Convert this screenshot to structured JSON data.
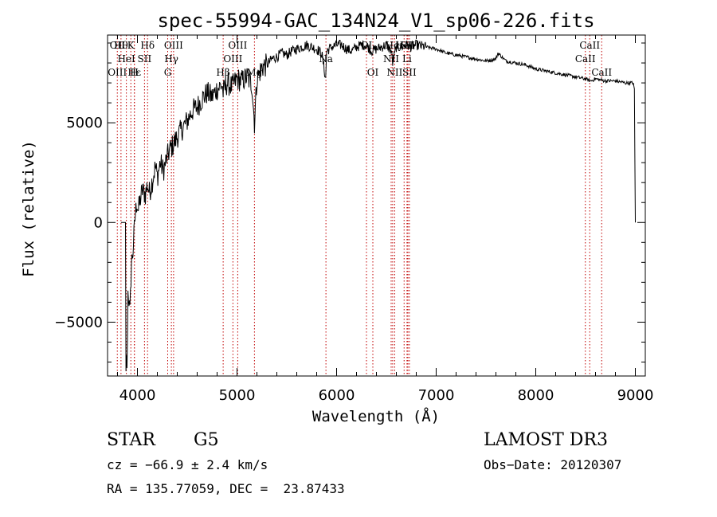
{
  "chart_data": {
    "type": "line",
    "title": "spec-55994-GAC_134N24_V1_sp06-226.fits",
    "xlabel": "Wavelength (Å)",
    "ylabel": "Flux (relative)",
    "xlim": [
      3700,
      9100
    ],
    "ylim": [
      -7700,
      9400
    ],
    "xticks": [
      4000,
      5000,
      6000,
      7000,
      8000,
      9000
    ],
    "xtick_labels": [
      "4000",
      "5000",
      "6000",
      "7000",
      "8000",
      "9000"
    ],
    "yticks": [
      -5000,
      0,
      5000
    ],
    "ytick_labels": [
      "−5000",
      "0",
      "5000"
    ],
    "series": [
      {
        "name": "flux",
        "x": [
          3835,
          3860,
          3880,
          3885,
          3890,
          3895,
          3905,
          3915,
          3925,
          3940,
          3955,
          3965,
          3980,
          3995,
          4010,
          4030,
          4050,
          4080,
          4100,
          4120,
          4150,
          4180,
          4200,
          4230,
          4260,
          4300,
          4330,
          4360,
          4400,
          4450,
          4500,
          4550,
          4600,
          4650,
          4700,
          4750,
          4800,
          4850,
          4861,
          4900,
          4950,
          5000,
          5050,
          5100,
          5150,
          5175,
          5200,
          5250,
          5300,
          5350,
          5400,
          5450,
          5500,
          5550,
          5600,
          5650,
          5700,
          5750,
          5800,
          5850,
          5890,
          5900,
          5950,
          6000,
          6050,
          6100,
          6150,
          6200,
          6250,
          6300,
          6350,
          6400,
          6450,
          6500,
          6550,
          6563,
          6600,
          6650,
          6700,
          6750,
          6800,
          6900,
          7000,
          7100,
          7200,
          7300,
          7400,
          7500,
          7600,
          7620,
          7700,
          7800,
          7900,
          8000,
          8100,
          8200,
          8300,
          8400,
          8500,
          8550,
          8600,
          8700,
          8800,
          8900,
          8980,
          8990,
          8995,
          9000
        ],
        "values": [
          0,
          0,
          0,
          -7700,
          -6500,
          -7600,
          -3500,
          -3900,
          -4500,
          -2000,
          -1500,
          -600,
          500,
          1000,
          600,
          1200,
          1600,
          1400,
          1900,
          1500,
          2100,
          2800,
          2300,
          3000,
          2600,
          3300,
          3700,
          3900,
          4300,
          4700,
          5100,
          5600,
          5800,
          6200,
          6500,
          6300,
          6700,
          6900,
          6500,
          7000,
          6800,
          7200,
          7100,
          7300,
          6900,
          5000,
          7200,
          7800,
          7900,
          8200,
          8300,
          8500,
          8400,
          8600,
          8700,
          8800,
          8900,
          8800,
          8700,
          8500,
          7200,
          8600,
          8800,
          8900,
          8900,
          8700,
          8600,
          8800,
          8900,
          8900,
          8600,
          8700,
          8800,
          8900,
          8600,
          8000,
          8800,
          8800,
          8900,
          8800,
          8900,
          8800,
          8700,
          8500,
          8400,
          8300,
          8200,
          8100,
          8200,
          8500,
          8100,
          8000,
          7900,
          7700,
          7600,
          7500,
          7400,
          7300,
          7200,
          7100,
          7200,
          7100,
          7100,
          7000,
          7000,
          6700,
          3200,
          0
        ]
      }
    ],
    "line_markers": [
      {
        "wave": 3798,
        "top": "OII",
        "mid": "",
        "bot": "OIII"
      },
      {
        "wave": 3835,
        "top": "Hθ",
        "mid": "",
        "bot": ""
      },
      {
        "wave": 3889,
        "top": "",
        "mid": "HeI",
        "bot": ""
      },
      {
        "wave": 3934,
        "top": "K",
        "mid": "",
        "bot": ""
      },
      {
        "wave": 3970,
        "top": "",
        "mid": "",
        "bot": "Hε"
      },
      {
        "wave": 3969,
        "top": "",
        "mid": "",
        "bot": "H"
      },
      {
        "wave": 4071,
        "top": "",
        "mid": "SII",
        "bot": ""
      },
      {
        "wave": 4102,
        "top": "Hδ",
        "mid": "",
        "bot": ""
      },
      {
        "wave": 4304,
        "top": "",
        "mid": "",
        "bot": "G"
      },
      {
        "wave": 4341,
        "top": "",
        "mid": "Hγ",
        "bot": ""
      },
      {
        "wave": 4363,
        "top": "OIII",
        "mid": "",
        "bot": ""
      },
      {
        "wave": 4861,
        "top": "",
        "mid": "",
        "bot": "Hβ"
      },
      {
        "wave": 4959,
        "top": "",
        "mid": "OIII",
        "bot": ""
      },
      {
        "wave": 5007,
        "top": "OIII",
        "mid": "",
        "bot": ""
      },
      {
        "wave": 5175,
        "top": "",
        "mid": "",
        "bot": "Mg"
      },
      {
        "wave": 5893,
        "top": "",
        "mid": "Na",
        "bot": ""
      },
      {
        "wave": 6300,
        "top": "OI",
        "mid": "",
        "bot": ""
      },
      {
        "wave": 6364,
        "top": "",
        "mid": "",
        "bot": "OI"
      },
      {
        "wave": 6548,
        "top": "",
        "mid": "NII",
        "bot": ""
      },
      {
        "wave": 6563,
        "top": "Hα",
        "mid": "",
        "bot": ""
      },
      {
        "wave": 6583,
        "top": "",
        "mid": "",
        "bot": "NII"
      },
      {
        "wave": 6678,
        "top": "HeI",
        "mid": "",
        "bot": ""
      },
      {
        "wave": 6707,
        "top": "",
        "mid": "Li",
        "bot": ""
      },
      {
        "wave": 6716,
        "top": "SII",
        "mid": "",
        "bot": ""
      },
      {
        "wave": 6731,
        "top": "",
        "mid": "",
        "bot": "SII"
      },
      {
        "wave": 8498,
        "top": "",
        "mid": "CaII",
        "bot": ""
      },
      {
        "wave": 8542,
        "top": "CaII",
        "mid": "",
        "bot": ""
      },
      {
        "wave": 8662,
        "top": "",
        "mid": "",
        "bot": "CaII"
      }
    ]
  },
  "info": {
    "object_class": "STAR",
    "subclass": "G5",
    "survey": "LAMOST DR3",
    "redshift_line": "cz = −66.9 ± 2.4 km/s",
    "obs_date_line": "Obs−Date: 20120307",
    "coords_line": "RA = 135.77059, DEC =  23.87433"
  },
  "colors": {
    "line_marker": "#c00000",
    "spectrum": "#000000"
  }
}
